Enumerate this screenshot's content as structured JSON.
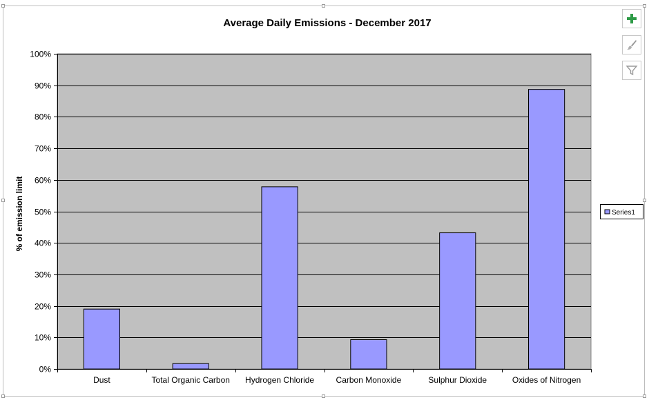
{
  "chart_data": {
    "type": "bar",
    "title": "Average Daily Emissions - December 2017",
    "xlabel": "",
    "ylabel": "% of emission limit",
    "categories": [
      "Dust",
      "Total Organic Carbon",
      "Hydrogen Chloride",
      "Carbon Monoxide",
      "Sulphur Dioxide",
      "Oxides of Nitrogen"
    ],
    "series": [
      {
        "name": "Series1",
        "values": [
          0.19,
          0.017,
          0.578,
          0.093,
          0.432,
          0.887
        ]
      }
    ],
    "ylim": [
      0,
      1
    ],
    "yticks": [
      0,
      0.1,
      0.2,
      0.3,
      0.4,
      0.5,
      0.6,
      0.7,
      0.8,
      0.9,
      1.0
    ],
    "ytick_labels": [
      "0%",
      "10%",
      "20%",
      "30%",
      "40%",
      "50%",
      "60%",
      "70%",
      "80%",
      "90%",
      "100%"
    ],
    "grid": true,
    "legend": "right",
    "colors": {
      "bar_fill": "#9999ff",
      "bar_stroke": "#000000",
      "plot_background": "#c0c0c0",
      "gridline": "#000000"
    }
  },
  "tools": {
    "add_icon": "plus-icon",
    "style_icon": "paintbrush-icon",
    "filter_icon": "funnel-icon",
    "accent": "#2e9b47"
  }
}
